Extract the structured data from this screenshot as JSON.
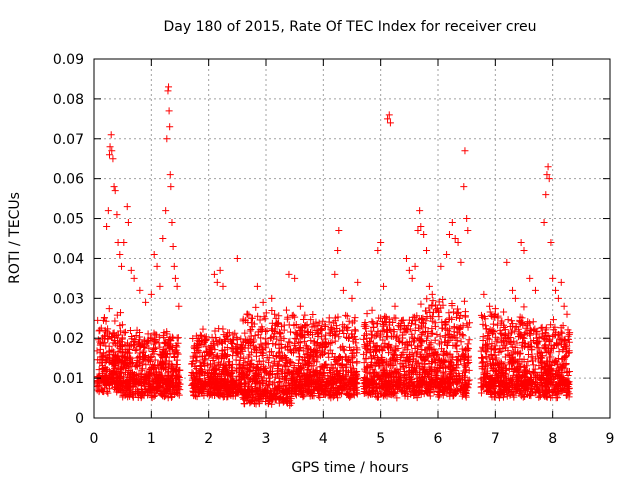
{
  "chart_data": {
    "type": "scatter",
    "title": "Day 180 of 2015, Rate Of TEC Index for receiver creu",
    "xlabel": "GPS time / hours",
    "ylabel": "ROTI / TECUs",
    "xlim": [
      0,
      9
    ],
    "ylim": [
      0,
      0.09
    ],
    "xticks": [
      "0",
      "1",
      "2",
      "3",
      "4",
      "5",
      "6",
      "7",
      "8",
      "9"
    ],
    "yticks": [
      "0",
      "0.01",
      "0.02",
      "0.03",
      "0.04",
      "0.05",
      "0.06",
      "0.07",
      "0.08",
      "0.09"
    ],
    "grid": true,
    "marker": "+",
    "color": "#ff0000",
    "series": [
      {
        "name": "ROTI",
        "coverage_hours": [
          [
            0.05,
            1.55
          ],
          [
            1.7,
            4.6
          ],
          [
            4.7,
            6.55
          ],
          [
            6.75,
            8.3
          ]
        ],
        "band_estimate": [
          {
            "start": 0.05,
            "end": 0.5,
            "base": 0.006,
            "spread": 0.018
          },
          {
            "start": 0.5,
            "end": 1.5,
            "base": 0.005,
            "spread": 0.014
          },
          {
            "start": 1.7,
            "end": 2.6,
            "base": 0.005,
            "spread": 0.014
          },
          {
            "start": 2.6,
            "end": 3.5,
            "base": 0.003,
            "spread": 0.022
          },
          {
            "start": 3.5,
            "end": 4.6,
            "base": 0.005,
            "spread": 0.018
          },
          {
            "start": 4.7,
            "end": 5.7,
            "base": 0.005,
            "spread": 0.018
          },
          {
            "start": 5.7,
            "end": 6.55,
            "base": 0.005,
            "spread": 0.022
          },
          {
            "start": 6.75,
            "end": 7.5,
            "base": 0.005,
            "spread": 0.02
          },
          {
            "start": 7.5,
            "end": 8.3,
            "base": 0.005,
            "spread": 0.016
          }
        ],
        "points": [
          [
            0.22,
            0.048
          ],
          [
            0.25,
            0.052
          ],
          [
            0.27,
            0.066
          ],
          [
            0.28,
            0.068
          ],
          [
            0.3,
            0.071
          ],
          [
            0.31,
            0.067
          ],
          [
            0.33,
            0.065
          ],
          [
            0.35,
            0.058
          ],
          [
            0.37,
            0.057
          ],
          [
            0.4,
            0.051
          ],
          [
            0.42,
            0.044
          ],
          [
            0.45,
            0.041
          ],
          [
            0.48,
            0.038
          ],
          [
            0.52,
            0.044
          ],
          [
            0.58,
            0.053
          ],
          [
            0.6,
            0.049
          ],
          [
            0.65,
            0.037
          ],
          [
            0.7,
            0.035
          ],
          [
            0.8,
            0.032
          ],
          [
            0.9,
            0.029
          ],
          [
            1.0,
            0.031
          ],
          [
            1.05,
            0.041
          ],
          [
            1.1,
            0.038
          ],
          [
            1.15,
            0.033
          ],
          [
            1.2,
            0.045
          ],
          [
            1.25,
            0.052
          ],
          [
            1.27,
            0.07
          ],
          [
            1.29,
            0.082
          ],
          [
            1.3,
            0.083
          ],
          [
            1.31,
            0.077
          ],
          [
            1.32,
            0.073
          ],
          [
            1.33,
            0.061
          ],
          [
            1.34,
            0.058
          ],
          [
            1.36,
            0.049
          ],
          [
            1.38,
            0.043
          ],
          [
            1.4,
            0.038
          ],
          [
            1.42,
            0.035
          ],
          [
            1.45,
            0.033
          ],
          [
            1.48,
            0.028
          ],
          [
            2.1,
            0.036
          ],
          [
            2.15,
            0.034
          ],
          [
            2.2,
            0.037
          ],
          [
            2.25,
            0.033
          ],
          [
            2.5,
            0.04
          ],
          [
            2.85,
            0.033
          ],
          [
            2.95,
            0.029
          ],
          [
            3.1,
            0.03
          ],
          [
            3.15,
            0.026
          ],
          [
            3.4,
            0.036
          ],
          [
            3.5,
            0.035
          ],
          [
            3.6,
            0.028
          ],
          [
            4.2,
            0.036
          ],
          [
            4.25,
            0.042
          ],
          [
            4.27,
            0.047
          ],
          [
            4.35,
            0.032
          ],
          [
            4.5,
            0.03
          ],
          [
            4.6,
            0.034
          ],
          [
            4.85,
            0.027
          ],
          [
            4.95,
            0.042
          ],
          [
            5.0,
            0.044
          ],
          [
            5.05,
            0.033
          ],
          [
            5.12,
            0.075
          ],
          [
            5.15,
            0.076
          ],
          [
            5.17,
            0.074
          ],
          [
            5.25,
            0.028
          ],
          [
            5.45,
            0.04
          ],
          [
            5.5,
            0.037
          ],
          [
            5.55,
            0.035
          ],
          [
            5.6,
            0.038
          ],
          [
            5.65,
            0.047
          ],
          [
            5.68,
            0.052
          ],
          [
            5.7,
            0.048
          ],
          [
            5.75,
            0.046
          ],
          [
            5.8,
            0.042
          ],
          [
            5.85,
            0.033
          ],
          [
            5.9,
            0.031
          ],
          [
            6.05,
            0.038
          ],
          [
            6.15,
            0.041
          ],
          [
            6.2,
            0.046
          ],
          [
            6.25,
            0.049
          ],
          [
            6.3,
            0.045
          ],
          [
            6.35,
            0.044
          ],
          [
            6.4,
            0.039
          ],
          [
            6.45,
            0.058
          ],
          [
            6.47,
            0.067
          ],
          [
            6.5,
            0.05
          ],
          [
            6.52,
            0.047
          ],
          [
            6.8,
            0.031
          ],
          [
            6.9,
            0.028
          ],
          [
            7.0,
            0.026
          ],
          [
            7.2,
            0.039
          ],
          [
            7.3,
            0.032
          ],
          [
            7.35,
            0.03
          ],
          [
            7.45,
            0.044
          ],
          [
            7.5,
            0.042
          ],
          [
            7.6,
            0.035
          ],
          [
            7.7,
            0.032
          ],
          [
            7.85,
            0.049
          ],
          [
            7.88,
            0.056
          ],
          [
            7.9,
            0.061
          ],
          [
            7.92,
            0.063
          ],
          [
            7.94,
            0.06
          ],
          [
            7.97,
            0.044
          ],
          [
            8.0,
            0.035
          ],
          [
            8.05,
            0.032
          ],
          [
            8.1,
            0.03
          ],
          [
            8.15,
            0.034
          ],
          [
            8.2,
            0.028
          ],
          [
            8.25,
            0.026
          ]
        ]
      }
    ]
  }
}
